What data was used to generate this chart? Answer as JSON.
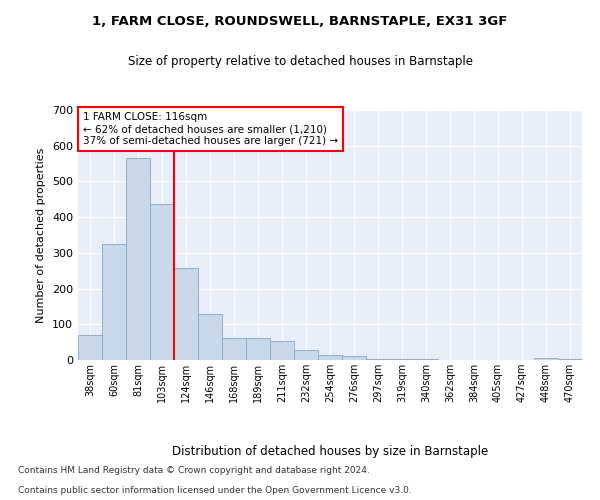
{
  "title1": "1, FARM CLOSE, ROUNDSWELL, BARNSTAPLE, EX31 3GF",
  "title2": "Size of property relative to detached houses in Barnstaple",
  "xlabel": "Distribution of detached houses by size in Barnstaple",
  "ylabel": "Number of detached properties",
  "categories": [
    "38sqm",
    "60sqm",
    "81sqm",
    "103sqm",
    "124sqm",
    "146sqm",
    "168sqm",
    "189sqm",
    "211sqm",
    "232sqm",
    "254sqm",
    "276sqm",
    "297sqm",
    "319sqm",
    "340sqm",
    "362sqm",
    "384sqm",
    "405sqm",
    "427sqm",
    "448sqm",
    "470sqm"
  ],
  "values": [
    70,
    325,
    565,
    437,
    258,
    128,
    63,
    63,
    52,
    27,
    15,
    10,
    4,
    4,
    4,
    1,
    0,
    0,
    0,
    5,
    3
  ],
  "bar_color": "#c8d8e8",
  "bar_edge_color": "#7fa8c8",
  "red_line_index": 3.5,
  "annotation_text": "1 FARM CLOSE: 116sqm\n← 62% of detached houses are smaller (1,210)\n37% of semi-detached houses are larger (721) →",
  "annotation_box_color": "white",
  "annotation_box_edge": "red",
  "ylim": [
    0,
    700
  ],
  "yticks": [
    0,
    100,
    200,
    300,
    400,
    500,
    600,
    700
  ],
  "background_color": "#e8eef8",
  "footer1": "Contains HM Land Registry data © Crown copyright and database right 2024.",
  "footer2": "Contains public sector information licensed under the Open Government Licence v3.0."
}
